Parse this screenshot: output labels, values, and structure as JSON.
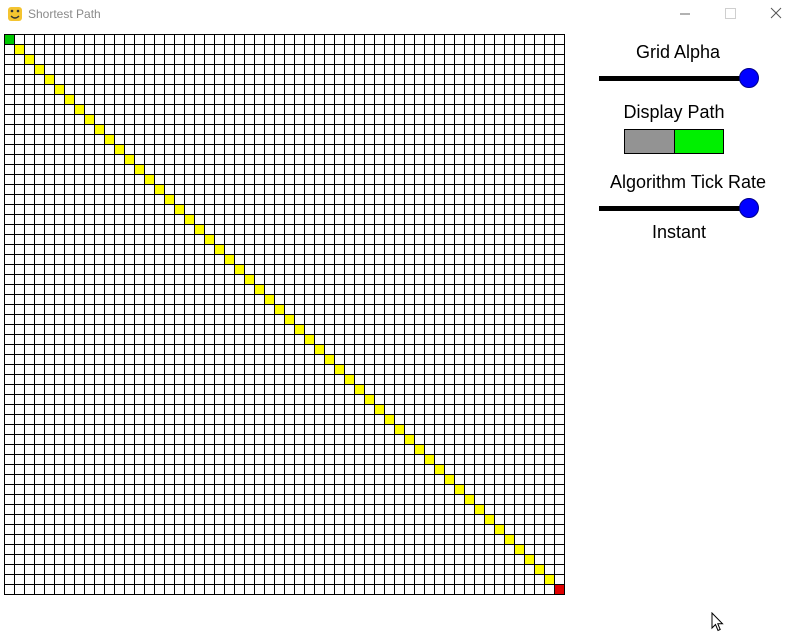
{
  "window": {
    "title": "Shortest Path",
    "icon": "pygame-snake-icon"
  },
  "grid": {
    "rows": 56,
    "cols": 56,
    "start_cell": [
      0,
      0
    ],
    "end_cell": [
      55,
      55
    ],
    "start_color": "#00c800",
    "end_color": "#e00000",
    "path_color": "#ffff00",
    "line_color": "#000000",
    "path_cells": "diagonal"
  },
  "panel": {
    "grid_alpha": {
      "label": "Grid Alpha",
      "value": 1.0
    },
    "display_path": {
      "label": "Display Path",
      "enabled": true,
      "on_color": "#00f000",
      "off_color": "#939393"
    },
    "tick_rate": {
      "label": "Algorithm Tick Rate",
      "value": 1.0,
      "value_label": "Instant"
    },
    "knob_color": "#0000ff"
  }
}
